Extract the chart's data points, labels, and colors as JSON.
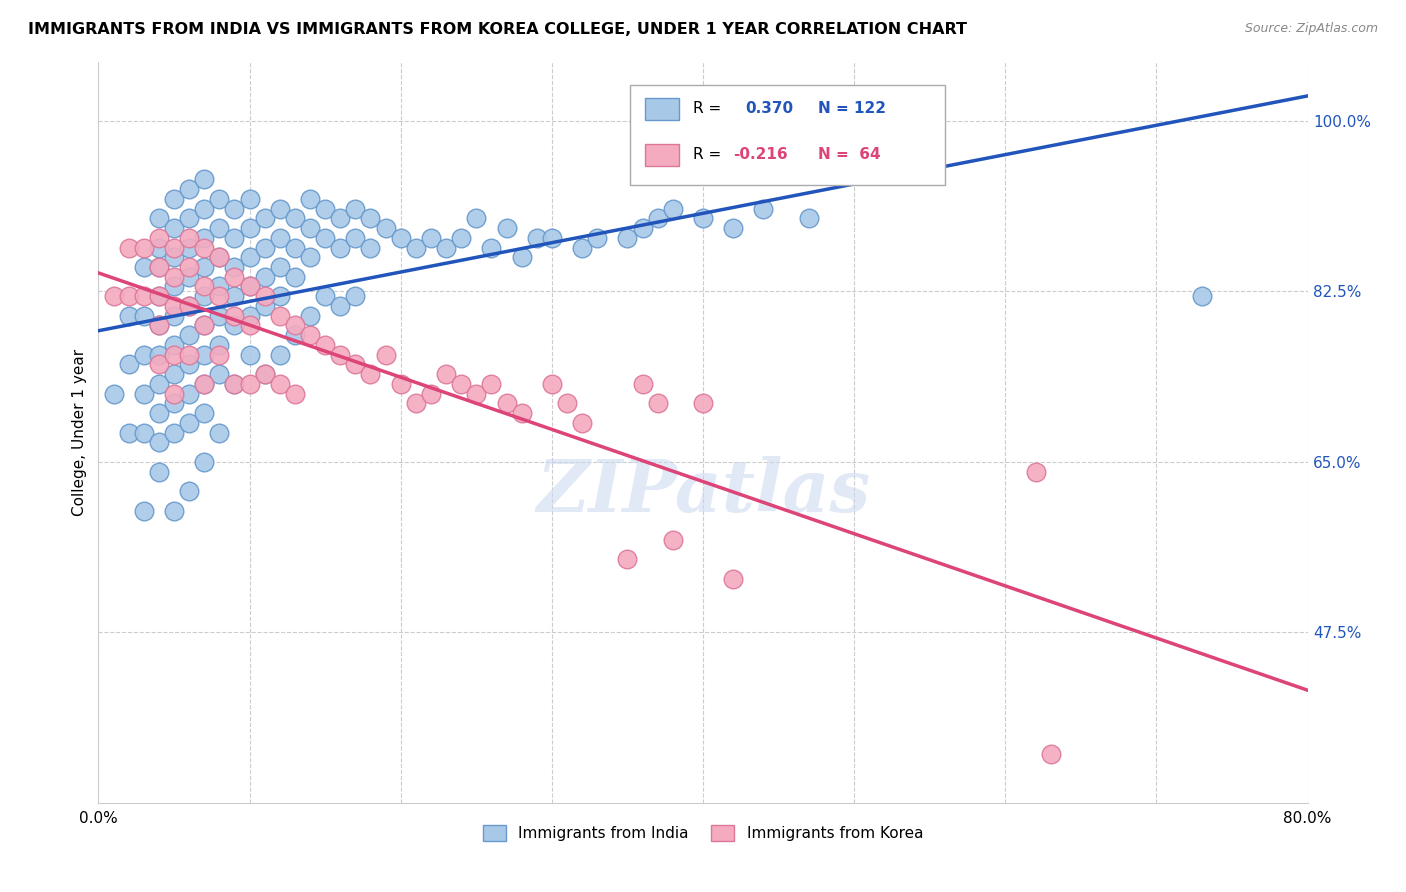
{
  "title": "IMMIGRANTS FROM INDIA VS IMMIGRANTS FROM KOREA COLLEGE, UNDER 1 YEAR CORRELATION CHART",
  "source": "Source: ZipAtlas.com",
  "ylabel": "College, Under 1 year",
  "ytick_labels": [
    "100.0%",
    "82.5%",
    "65.0%",
    "47.5%"
  ],
  "ytick_values": [
    1.0,
    0.825,
    0.65,
    0.475
  ],
  "xlim": [
    0.0,
    0.8
  ],
  "ylim": [
    0.3,
    1.06
  ],
  "india_color": "#A8C8E8",
  "india_edge_color": "#6699CC",
  "korea_color": "#F4AABF",
  "korea_edge_color": "#DD7799",
  "india_line_color": "#2255BB",
  "korea_line_color": "#DD4477",
  "watermark": "ZIPatlas",
  "india_scatter_x": [
    0.01,
    0.02,
    0.02,
    0.02,
    0.03,
    0.03,
    0.03,
    0.03,
    0.03,
    0.03,
    0.04,
    0.04,
    0.04,
    0.04,
    0.04,
    0.04,
    0.04,
    0.04,
    0.04,
    0.04,
    0.05,
    0.05,
    0.05,
    0.05,
    0.05,
    0.05,
    0.05,
    0.05,
    0.05,
    0.05,
    0.06,
    0.06,
    0.06,
    0.06,
    0.06,
    0.06,
    0.06,
    0.06,
    0.06,
    0.06,
    0.07,
    0.07,
    0.07,
    0.07,
    0.07,
    0.07,
    0.07,
    0.07,
    0.07,
    0.07,
    0.08,
    0.08,
    0.08,
    0.08,
    0.08,
    0.08,
    0.08,
    0.08,
    0.09,
    0.09,
    0.09,
    0.09,
    0.09,
    0.09,
    0.1,
    0.1,
    0.1,
    0.1,
    0.1,
    0.1,
    0.11,
    0.11,
    0.11,
    0.11,
    0.11,
    0.12,
    0.12,
    0.12,
    0.12,
    0.12,
    0.13,
    0.13,
    0.13,
    0.13,
    0.14,
    0.14,
    0.14,
    0.14,
    0.15,
    0.15,
    0.15,
    0.16,
    0.16,
    0.16,
    0.17,
    0.17,
    0.17,
    0.18,
    0.18,
    0.19,
    0.2,
    0.21,
    0.22,
    0.23,
    0.24,
    0.25,
    0.26,
    0.27,
    0.28,
    0.29,
    0.3,
    0.32,
    0.33,
    0.35,
    0.36,
    0.37,
    0.38,
    0.4,
    0.42,
    0.44,
    0.47,
    0.73
  ],
  "india_scatter_y": [
    0.72,
    0.8,
    0.75,
    0.68,
    0.85,
    0.8,
    0.76,
    0.72,
    0.68,
    0.6,
    0.9,
    0.87,
    0.85,
    0.82,
    0.79,
    0.76,
    0.73,
    0.7,
    0.67,
    0.64,
    0.92,
    0.89,
    0.86,
    0.83,
    0.8,
    0.77,
    0.74,
    0.71,
    0.68,
    0.6,
    0.93,
    0.9,
    0.87,
    0.84,
    0.81,
    0.78,
    0.75,
    0.72,
    0.69,
    0.62,
    0.94,
    0.91,
    0.88,
    0.85,
    0.82,
    0.79,
    0.76,
    0.73,
    0.7,
    0.65,
    0.92,
    0.89,
    0.86,
    0.83,
    0.8,
    0.77,
    0.74,
    0.68,
    0.91,
    0.88,
    0.85,
    0.82,
    0.79,
    0.73,
    0.92,
    0.89,
    0.86,
    0.83,
    0.8,
    0.76,
    0.9,
    0.87,
    0.84,
    0.81,
    0.74,
    0.91,
    0.88,
    0.85,
    0.82,
    0.76,
    0.9,
    0.87,
    0.84,
    0.78,
    0.92,
    0.89,
    0.86,
    0.8,
    0.91,
    0.88,
    0.82,
    0.9,
    0.87,
    0.81,
    0.91,
    0.88,
    0.82,
    0.9,
    0.87,
    0.89,
    0.88,
    0.87,
    0.88,
    0.87,
    0.88,
    0.9,
    0.87,
    0.89,
    0.86,
    0.88,
    0.88,
    0.87,
    0.88,
    0.88,
    0.89,
    0.9,
    0.91,
    0.9,
    0.89,
    0.91,
    0.9,
    0.82
  ],
  "korea_scatter_x": [
    0.01,
    0.02,
    0.02,
    0.03,
    0.03,
    0.04,
    0.04,
    0.04,
    0.04,
    0.04,
    0.05,
    0.05,
    0.05,
    0.05,
    0.05,
    0.06,
    0.06,
    0.06,
    0.06,
    0.07,
    0.07,
    0.07,
    0.07,
    0.08,
    0.08,
    0.08,
    0.09,
    0.09,
    0.09,
    0.1,
    0.1,
    0.1,
    0.11,
    0.11,
    0.12,
    0.12,
    0.13,
    0.13,
    0.14,
    0.15,
    0.16,
    0.17,
    0.18,
    0.19,
    0.2,
    0.21,
    0.22,
    0.23,
    0.24,
    0.25,
    0.26,
    0.27,
    0.28,
    0.3,
    0.31,
    0.32,
    0.35,
    0.36,
    0.37,
    0.38,
    0.4,
    0.42,
    0.62,
    0.63
  ],
  "korea_scatter_y": [
    0.82,
    0.87,
    0.82,
    0.87,
    0.82,
    0.88,
    0.85,
    0.82,
    0.79,
    0.75,
    0.87,
    0.84,
    0.81,
    0.76,
    0.72,
    0.88,
    0.85,
    0.81,
    0.76,
    0.87,
    0.83,
    0.79,
    0.73,
    0.86,
    0.82,
    0.76,
    0.84,
    0.8,
    0.73,
    0.83,
    0.79,
    0.73,
    0.82,
    0.74,
    0.8,
    0.73,
    0.79,
    0.72,
    0.78,
    0.77,
    0.76,
    0.75,
    0.74,
    0.76,
    0.73,
    0.71,
    0.72,
    0.74,
    0.73,
    0.72,
    0.73,
    0.71,
    0.7,
    0.73,
    0.71,
    0.69,
    0.55,
    0.73,
    0.71,
    0.57,
    0.71,
    0.53,
    0.64,
    0.35
  ]
}
